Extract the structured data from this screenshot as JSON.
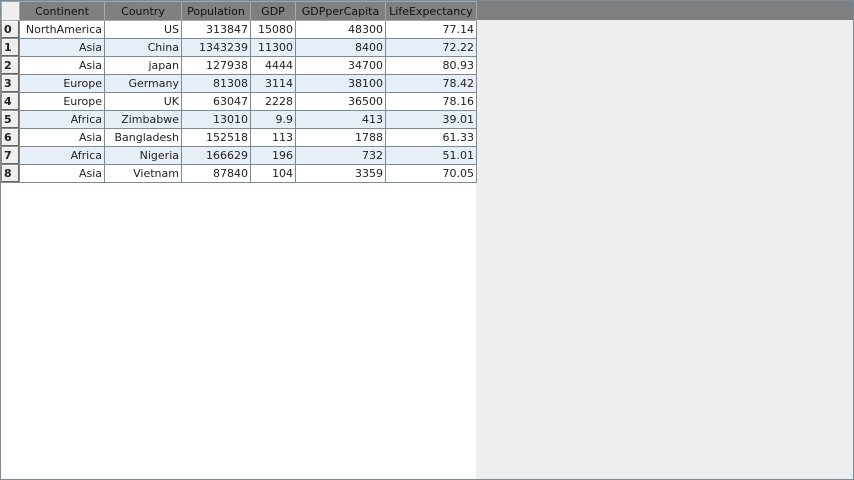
{
  "table": {
    "columns": [
      "Continent",
      "Country",
      "Population",
      "GDP",
      "GDPperCapita",
      "LifeExpectancy"
    ],
    "rows": [
      {
        "index": "0",
        "cells": [
          "NorthAmerica",
          "US",
          "313847",
          "15080",
          "48300",
          "77.14"
        ]
      },
      {
        "index": "1",
        "cells": [
          "Asia",
          "China",
          "1343239",
          "11300",
          "8400",
          "72.22"
        ]
      },
      {
        "index": "2",
        "cells": [
          "Asia",
          "japan",
          "127938",
          "4444",
          "34700",
          "80.93"
        ]
      },
      {
        "index": "3",
        "cells": [
          "Europe",
          "Germany",
          "81308",
          "3114",
          "38100",
          "78.42"
        ]
      },
      {
        "index": "4",
        "cells": [
          "Europe",
          "UK",
          "63047",
          "2228",
          "36500",
          "78.16"
        ]
      },
      {
        "index": "5",
        "cells": [
          "Africa",
          "Zimbabwe",
          "13010",
          "9.9",
          "413",
          "39.01"
        ]
      },
      {
        "index": "6",
        "cells": [
          "Asia",
          "Bangladesh",
          "152518",
          "113",
          "1788",
          "61.33"
        ]
      },
      {
        "index": "7",
        "cells": [
          "Africa",
          "Nigeria",
          "166629",
          "196",
          "732",
          "51.01"
        ]
      },
      {
        "index": "8",
        "cells": [
          "Asia",
          "Vietnam",
          "87840",
          "104",
          "3359",
          "70.05"
        ]
      }
    ]
  },
  "colors": {
    "header": "#808080",
    "alt_row": "#e6eef7",
    "background": "#eeeeee"
  }
}
